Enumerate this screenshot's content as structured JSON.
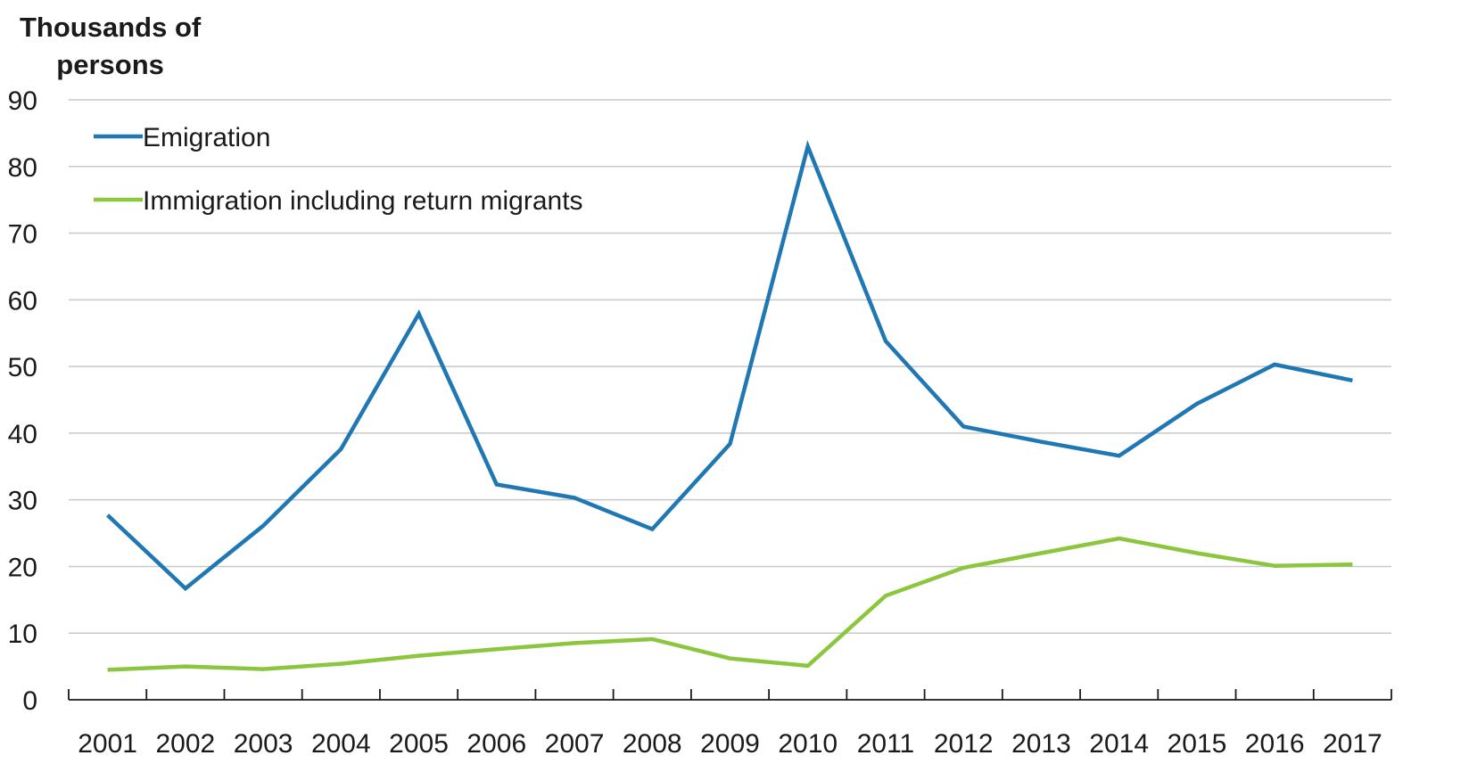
{
  "chart_data": {
    "type": "line",
    "ylabel": "Thousands of persons",
    "ylabel_lines": [
      "Thousands of",
      "persons"
    ],
    "x": [
      "2001",
      "2002",
      "2003",
      "2004",
      "2005",
      "2006",
      "2007",
      "2008",
      "2009",
      "2010",
      "2011",
      "2012",
      "2013",
      "2014",
      "2015",
      "2016",
      "2017"
    ],
    "ylim": [
      0,
      90
    ],
    "yticks": [
      0,
      10,
      20,
      30,
      40,
      50,
      60,
      70,
      80,
      90
    ],
    "grid": true,
    "legend_position": "top-left",
    "series": [
      {
        "name": "Emigration",
        "color": "#1f77b4",
        "values": [
          27.7,
          16.7,
          26.1,
          37.6,
          57.9,
          32.3,
          30.3,
          25.6,
          38.4,
          83.0,
          53.8,
          41.0,
          38.7,
          36.6,
          44.4,
          50.3,
          47.9
        ]
      },
      {
        "name": "Immigration including return migrants",
        "color": "#8cc63f",
        "values": [
          4.5,
          5.0,
          4.6,
          5.4,
          6.6,
          7.6,
          8.5,
          9.1,
          6.2,
          5.1,
          15.6,
          19.8,
          22.0,
          24.2,
          22.0,
          20.1,
          20.3
        ]
      }
    ]
  }
}
